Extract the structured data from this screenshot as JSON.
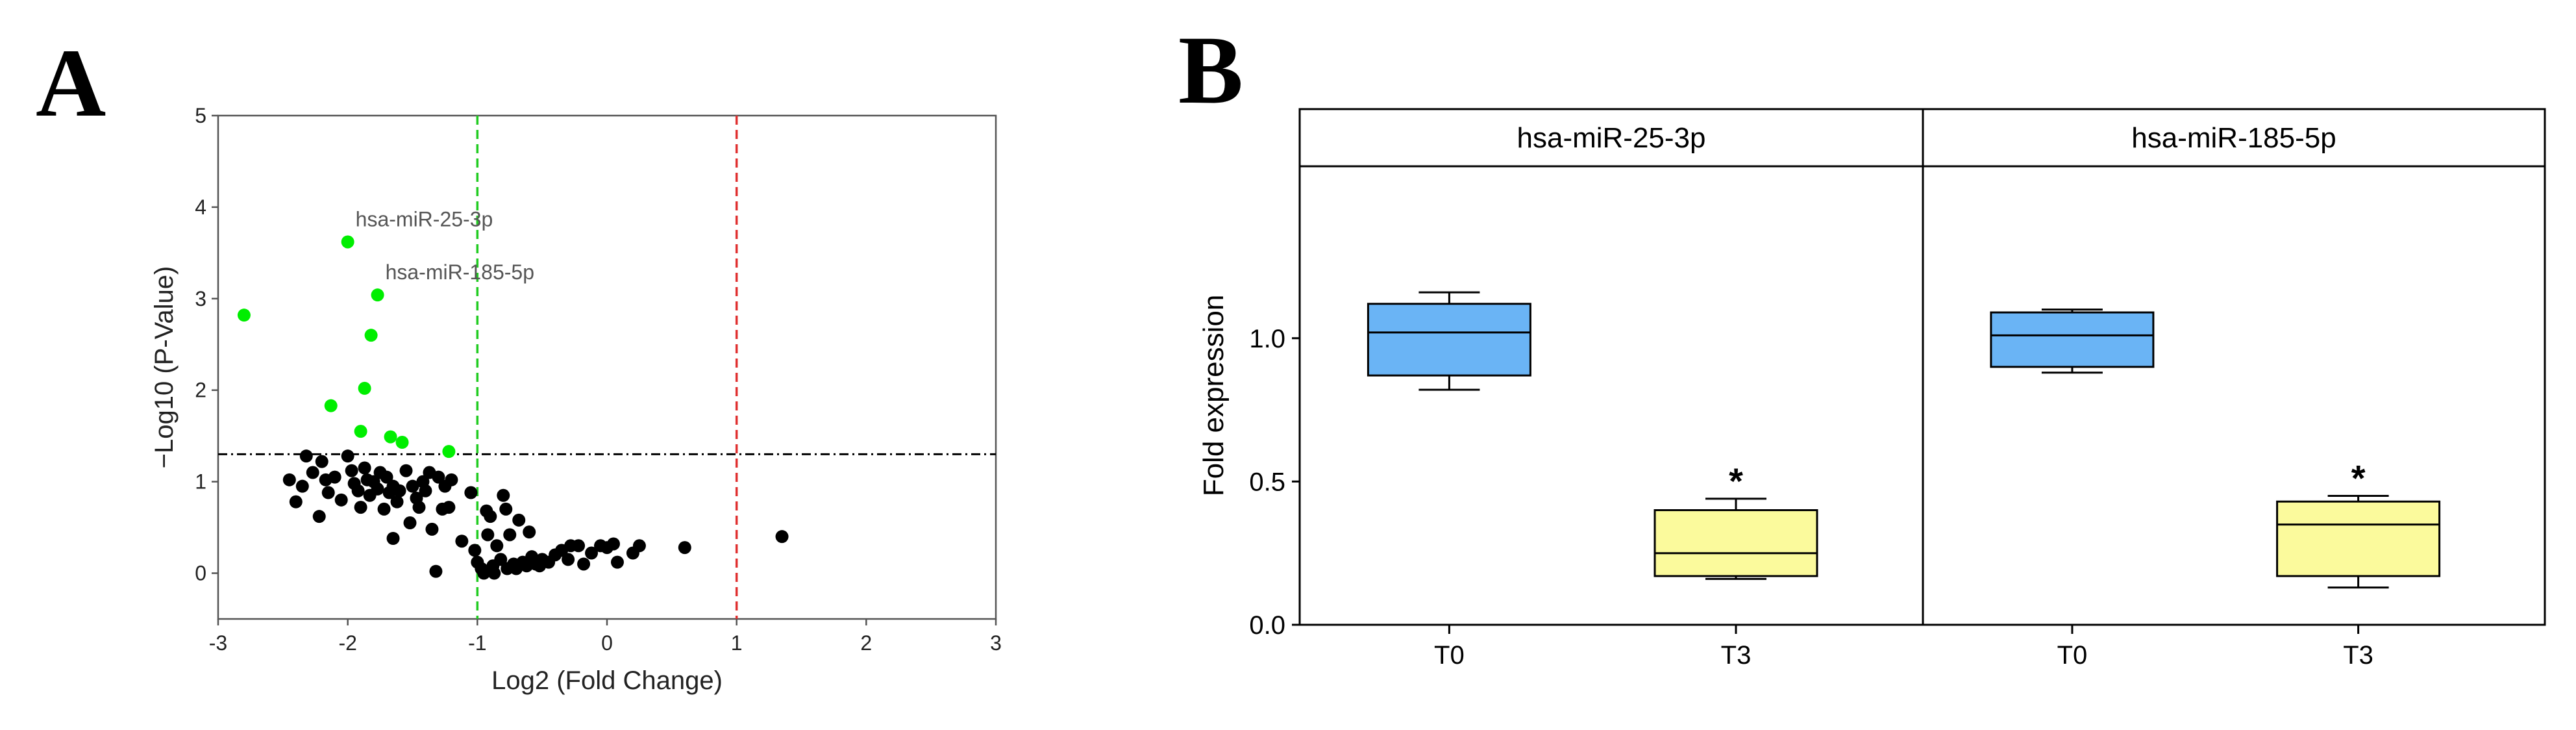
{
  "chart_data": [
    {
      "panel": "A",
      "type": "scatter",
      "xlabel": "Log2 (Fold Change)",
      "ylabel": "−Log10 (P-Value)",
      "xlim": [
        -3,
        3
      ],
      "ylim": [
        -0.5,
        5
      ],
      "xticks": [
        -3,
        -2,
        -1,
        0,
        1,
        2,
        3
      ],
      "yticks": [
        0,
        1,
        2,
        3,
        4,
        5
      ],
      "reference_lines": [
        {
          "orientation": "vertical",
          "value": -1,
          "color": "#22cc22",
          "style": "dashed"
        },
        {
          "orientation": "vertical",
          "value": 1,
          "color": "#e03030",
          "style": "dashed"
        },
        {
          "orientation": "horizontal",
          "value": 1.3,
          "color": "#000000",
          "style": "dashdot"
        }
      ],
      "series": [
        {
          "color": "#00ee00",
          "points": [
            [
              -2.8,
              2.82
            ],
            [
              -2.0,
              3.62
            ],
            [
              -1.77,
              3.04
            ],
            [
              -1.82,
              2.6
            ],
            [
              -1.87,
              2.02
            ],
            [
              -2.13,
              1.83
            ],
            [
              -1.9,
              1.55
            ],
            [
              -1.67,
              1.49
            ],
            [
              -1.58,
              1.43
            ],
            [
              -1.22,
              1.33
            ]
          ]
        },
        {
          "color": "#000000",
          "points": [
            [
              -2.45,
              1.02
            ],
            [
              -2.4,
              0.78
            ],
            [
              -2.35,
              0.95
            ],
            [
              -2.32,
              1.28
            ],
            [
              -2.27,
              1.1
            ],
            [
              -2.22,
              0.62
            ],
            [
              -2.2,
              1.22
            ],
            [
              -2.17,
              1.02
            ],
            [
              -2.15,
              0.88
            ],
            [
              -2.1,
              1.05
            ],
            [
              -2.05,
              0.8
            ],
            [
              -2.0,
              1.28
            ],
            [
              -1.97,
              1.12
            ],
            [
              -1.95,
              0.98
            ],
            [
              -1.92,
              0.9
            ],
            [
              -1.9,
              0.72
            ],
            [
              -1.87,
              1.15
            ],
            [
              -1.85,
              1.02
            ],
            [
              -1.83,
              0.85
            ],
            [
              -1.8,
              1.0
            ],
            [
              -1.77,
              0.92
            ],
            [
              -1.75,
              1.1
            ],
            [
              -1.72,
              0.7
            ],
            [
              -1.7,
              1.05
            ],
            [
              -1.68,
              0.88
            ],
            [
              -1.65,
              0.95
            ],
            [
              -1.62,
              0.78
            ],
            [
              -1.65,
              0.38
            ],
            [
              -1.6,
              0.9
            ],
            [
              -1.55,
              1.12
            ],
            [
              -1.52,
              0.55
            ],
            [
              -1.5,
              0.95
            ],
            [
              -1.47,
              0.82
            ],
            [
              -1.45,
              0.72
            ],
            [
              -1.42,
              1.0
            ],
            [
              -1.4,
              0.9
            ],
            [
              -1.37,
              1.1
            ],
            [
              -1.35,
              0.48
            ],
            [
              -1.3,
              1.05
            ],
            [
              -1.27,
              0.7
            ],
            [
              -1.32,
              0.02
            ],
            [
              -1.25,
              0.95
            ],
            [
              -1.22,
              0.72
            ],
            [
              -1.2,
              1.02
            ],
            [
              -1.12,
              0.35
            ],
            [
              -1.05,
              0.88
            ],
            [
              -1.02,
              0.25
            ],
            [
              -1.0,
              0.12
            ],
            [
              -0.97,
              0.05
            ],
            [
              -0.95,
              0.0
            ],
            [
              -0.93,
              0.68
            ],
            [
              -0.92,
              0.42
            ],
            [
              -0.9,
              0.62
            ],
            [
              -0.88,
              0.08
            ],
            [
              -0.87,
              0.0
            ],
            [
              -0.85,
              0.3
            ],
            [
              -0.82,
              0.15
            ],
            [
              -0.8,
              0.85
            ],
            [
              -0.78,
              0.7
            ],
            [
              -0.77,
              0.05
            ],
            [
              -0.75,
              0.42
            ],
            [
              -0.72,
              0.1
            ],
            [
              -0.7,
              0.05
            ],
            [
              -0.68,
              0.58
            ],
            [
              -0.65,
              0.12
            ],
            [
              -0.62,
              0.08
            ],
            [
              -0.6,
              0.45
            ],
            [
              -0.58,
              0.18
            ],
            [
              -0.55,
              0.1
            ],
            [
              -0.52,
              0.08
            ],
            [
              -0.5,
              0.15
            ],
            [
              -0.45,
              0.12
            ],
            [
              -0.4,
              0.2
            ],
            [
              -0.35,
              0.25
            ],
            [
              -0.3,
              0.15
            ],
            [
              -0.28,
              0.3
            ],
            [
              -0.22,
              0.3
            ],
            [
              -0.18,
              0.1
            ],
            [
              -0.12,
              0.22
            ],
            [
              -0.05,
              0.3
            ],
            [
              0.0,
              0.28
            ],
            [
              0.05,
              0.32
            ],
            [
              0.08,
              0.12
            ],
            [
              0.2,
              0.22
            ],
            [
              0.25,
              0.3
            ],
            [
              0.6,
              0.28
            ],
            [
              1.35,
              0.4
            ]
          ]
        }
      ],
      "annotations": [
        {
          "text": "hsa-miR-25-3p",
          "x": -2.0,
          "y": 3.62
        },
        {
          "text": "hsa-miR-185-5p",
          "x": -1.77,
          "y": 3.04
        }
      ]
    },
    {
      "panel": "B",
      "type": "box",
      "ylabel": "Fold expression",
      "ylim": [
        0,
        1.6
      ],
      "yticks": [
        "0.0",
        "0.5",
        "1.0"
      ],
      "categories": [
        "T0",
        "T3"
      ],
      "colors": {
        "T0": "#6ab4f5",
        "T3": "#fbfa9c"
      },
      "facets": [
        {
          "title": "hsa-miR-25-3p",
          "boxes": [
            {
              "category": "T0",
              "min": 0.82,
              "q1": 0.87,
              "median": 1.02,
              "q3": 1.12,
              "max": 1.16,
              "significant": false
            },
            {
              "category": "T3",
              "min": 0.16,
              "q1": 0.17,
              "median": 0.25,
              "q3": 0.4,
              "max": 0.44,
              "significant": true
            }
          ]
        },
        {
          "title": "hsa-miR-185-5p",
          "boxes": [
            {
              "category": "T0",
              "min": 0.88,
              "q1": 0.9,
              "median": 1.01,
              "q3": 1.09,
              "max": 1.1,
              "significant": false
            },
            {
              "category": "T3",
              "min": 0.13,
              "q1": 0.17,
              "median": 0.35,
              "q3": 0.43,
              "max": 0.45,
              "significant": true
            }
          ]
        }
      ],
      "significance_marker": "*"
    }
  ]
}
